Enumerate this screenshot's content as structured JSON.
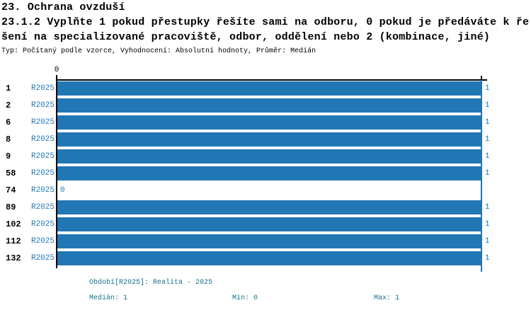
{
  "header": {
    "title_line1": "23. Ochrana ovzduší",
    "question_line1": "23.1.2 Vyplňte 1 pokud přestupky řešíte sami na odboru, 0 pokud je předáváte k ře",
    "question_line2": "šení na specializované pracoviště, odbor, oddělení nebo 2 (kombinace, jiné)",
    "meta": "Typ: Počítaný podle vzorce, Vyhodnocení: Absolutní hodnoty, Průměr: Medián"
  },
  "chart_data": {
    "type": "bar",
    "orientation": "horizontal",
    "title": "23.1.2 Vyplňte 1 pokud přestupky řešíte sami na odboru, 0 pokud je předáváte k řešení na specializované pracoviště, odbor, oddělení nebo 2 (kombinace, jiné)",
    "categories": [
      "1",
      "2",
      "6",
      "8",
      "9",
      "58",
      "74",
      "89",
      "102",
      "112",
      "132"
    ],
    "series": [
      {
        "name": "R2025",
        "values": [
          1,
          1,
          1,
          1,
          1,
          1,
          0,
          1,
          1,
          1,
          1
        ]
      }
    ],
    "value_labels": [
      "1",
      "1",
      "1",
      "1",
      "1",
      "1",
      "0",
      "1",
      "1",
      "1",
      "1"
    ],
    "xlim": [
      0,
      1
    ],
    "x_tick_labels_shown": [
      "0"
    ],
    "legend_position": "none",
    "grid": "max-value-line-only",
    "bar_color": "#2176b4"
  },
  "footer": {
    "period": "Období[R2025]: Realita - 2025",
    "median": "Medián: 1",
    "min": "Min: 0",
    "max": "Max: 1"
  },
  "colors": {
    "bar": "#2176b4",
    "series_label_text": "#2176b4",
    "value_label_text": "#2176b4",
    "footer_text": "#15718f",
    "title_text": "#000000",
    "axis": "#000000"
  },
  "axis": {
    "zero_tick_label": "0"
  }
}
